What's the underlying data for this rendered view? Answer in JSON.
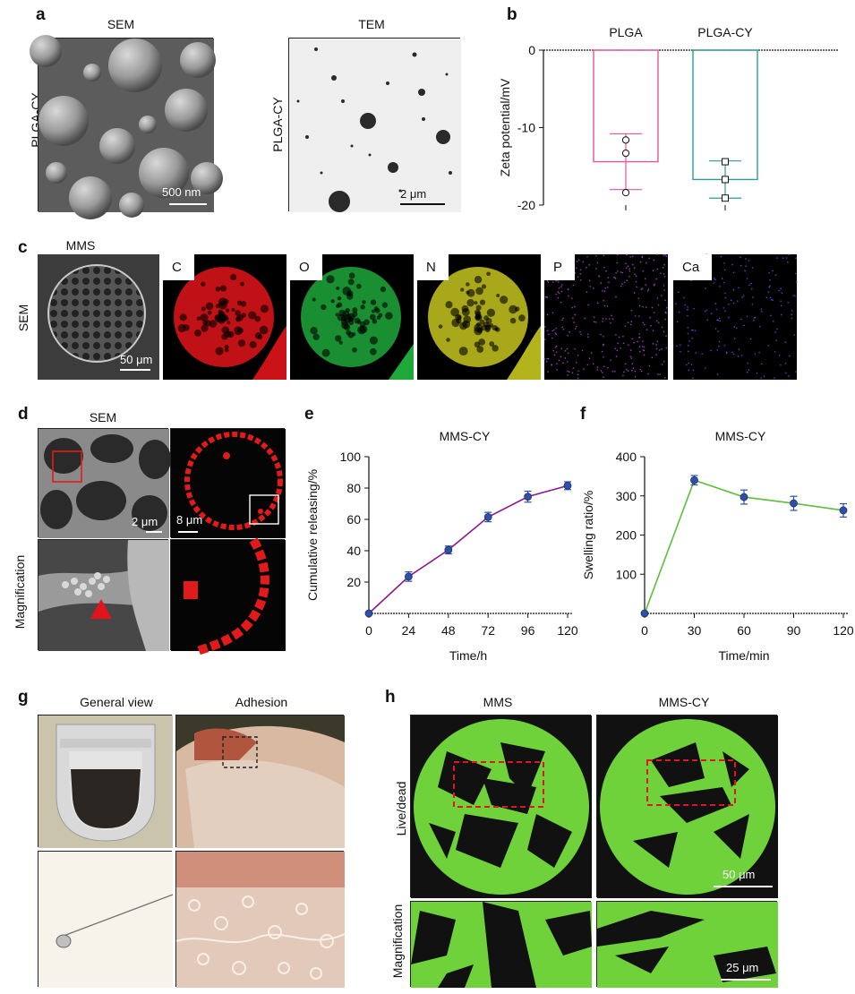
{
  "panel_a": {
    "label": "a",
    "left": {
      "title": "SEM",
      "side": "PLGA-CY",
      "scale": "500 nm"
    },
    "right": {
      "title": "TEM",
      "side": "PLGA-CY",
      "scale": "2 μm"
    }
  },
  "panel_b": {
    "label": "b"
  },
  "panel_c": {
    "label": "c",
    "title": "MMS",
    "side": "SEM",
    "scale": "50 μm",
    "elements": [
      "C",
      "O",
      "N",
      "P",
      "Ca"
    ],
    "colors": {
      "C": "#e0141a",
      "O": "#1fa83a",
      "N": "#c7c61f",
      "P": "#9c3fc0",
      "Ca": "#3a55d8"
    }
  },
  "panel_d": {
    "label": "d",
    "title": "SEM",
    "side": "Magnification",
    "scale_left": "2 μm",
    "scale_right": "8 μm"
  },
  "panel_e": {
    "label": "e"
  },
  "panel_f": {
    "label": "f"
  },
  "panel_g": {
    "label": "g",
    "col1": "General view",
    "col2": "Adhesion"
  },
  "panel_h": {
    "label": "h",
    "col1": "MMS",
    "col2": "MMS-CY",
    "row1": "Live/dead",
    "row2": "Magnification",
    "scale1": "50 μm",
    "scale2": "25 μm"
  },
  "chart_data": [
    {
      "id": "b",
      "type": "bar",
      "categories": [
        "PLGA",
        "PLGA-CY"
      ],
      "values": [
        -14.4,
        -16.7
      ],
      "errors": [
        3.6,
        2.4
      ],
      "points": [
        [
          -11.6,
          -13.3,
          -18.4
        ],
        [
          -14.4,
          -16.7,
          -19.1
        ]
      ],
      "colors": [
        "#e5569b",
        "#2a9d96"
      ],
      "ylabel": "Zeta potential/mV",
      "ylim": [
        -20,
        0
      ],
      "yticks": [
        0,
        -10,
        -20
      ],
      "ytick_labels": [
        "0",
        "-10",
        "-20"
      ]
    },
    {
      "id": "e",
      "type": "line",
      "title": "MMS-CY",
      "xlabel": "Time/h",
      "ylabel": "Cumulative releasing/%",
      "x": [
        0,
        24,
        48,
        72,
        96,
        120
      ],
      "y": [
        0,
        23.5,
        40.5,
        61.5,
        74.5,
        81.5
      ],
      "err": [
        0,
        3,
        2.5,
        3,
        3.5,
        2.5
      ],
      "xlim": [
        0,
        120
      ],
      "ylim": [
        0,
        100
      ],
      "xticks": [
        0,
        24,
        48,
        72,
        96,
        120
      ],
      "xtick_labels": [
        "0",
        "24",
        "48",
        "72",
        "96",
        "120"
      ],
      "yticks": [
        20,
        40,
        60,
        80,
        100
      ],
      "ytick_labels": [
        "20",
        "40",
        "60",
        "80",
        "100"
      ],
      "line_color": "#8b1a8b",
      "marker_color": "#2f4fa8"
    },
    {
      "id": "f",
      "type": "line",
      "title": "MMS-CY",
      "xlabel": "Time/min",
      "ylabel": "Swelling ratio/%",
      "x": [
        0,
        30,
        60,
        90,
        120
      ],
      "y": [
        0,
        340,
        297,
        281,
        263
      ],
      "err": [
        0,
        12,
        18,
        18,
        17
      ],
      "xlim": [
        0,
        120
      ],
      "ylim": [
        0,
        400
      ],
      "xticks": [
        0,
        30,
        60,
        90,
        120
      ],
      "xtick_labels": [
        "0",
        "30",
        "60",
        "90",
        "120"
      ],
      "yticks": [
        100,
        200,
        300,
        400
      ],
      "ytick_labels": [
        "100",
        "200",
        "300",
        "400"
      ],
      "line_color": "#5bbf3b",
      "marker_color": "#2f4fa8"
    }
  ]
}
